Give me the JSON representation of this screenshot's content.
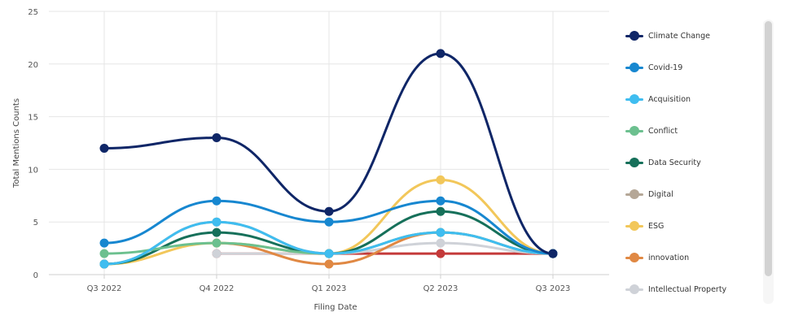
{
  "chart_data": {
    "type": "line",
    "xlabel": "Filing Date",
    "ylabel": "Total Mentions Counts",
    "categories": [
      "Q3 2022",
      "Q4 2022",
      "Q1 2023",
      "Q2 2023",
      "Q3 2023"
    ],
    "ylim": [
      0,
      25
    ],
    "yticks": [
      0,
      5,
      10,
      15,
      20,
      25
    ],
    "grid": true,
    "legend_position": "right",
    "series": [
      {
        "name": "Climate Change",
        "color": "#0f2667",
        "values": [
          12,
          13,
          6,
          21,
          2
        ]
      },
      {
        "name": "Covid-19",
        "color": "#1787d0",
        "values": [
          3,
          7,
          5,
          7,
          2
        ]
      },
      {
        "name": "Acquisition",
        "color": "#3fbdf0",
        "values": [
          1,
          5,
          2,
          4,
          2
        ]
      },
      {
        "name": "Conflict",
        "color": "#6cc08f",
        "values": [
          2,
          3,
          2,
          4,
          2
        ]
      },
      {
        "name": "Data Security",
        "color": "#16705a",
        "values": [
          1,
          4,
          2,
          6,
          2
        ]
      },
      {
        "name": "Digital",
        "color": "#b5a797",
        "values": [
          1,
          5,
          2,
          4,
          2
        ]
      },
      {
        "name": "ESG",
        "color": "#f2c75a",
        "values": [
          1,
          3,
          2,
          9,
          2
        ]
      },
      {
        "name": "innovation",
        "color": "#e08843",
        "values": [
          null,
          3,
          1,
          4,
          2
        ]
      },
      {
        "name": "Intellectual Property",
        "color": "#cfd2d8",
        "values": [
          null,
          2,
          2,
          3,
          2
        ]
      },
      {
        "name": "",
        "color": "#c43a3a",
        "values": [
          null,
          2,
          2,
          2,
          2
        ]
      }
    ]
  }
}
